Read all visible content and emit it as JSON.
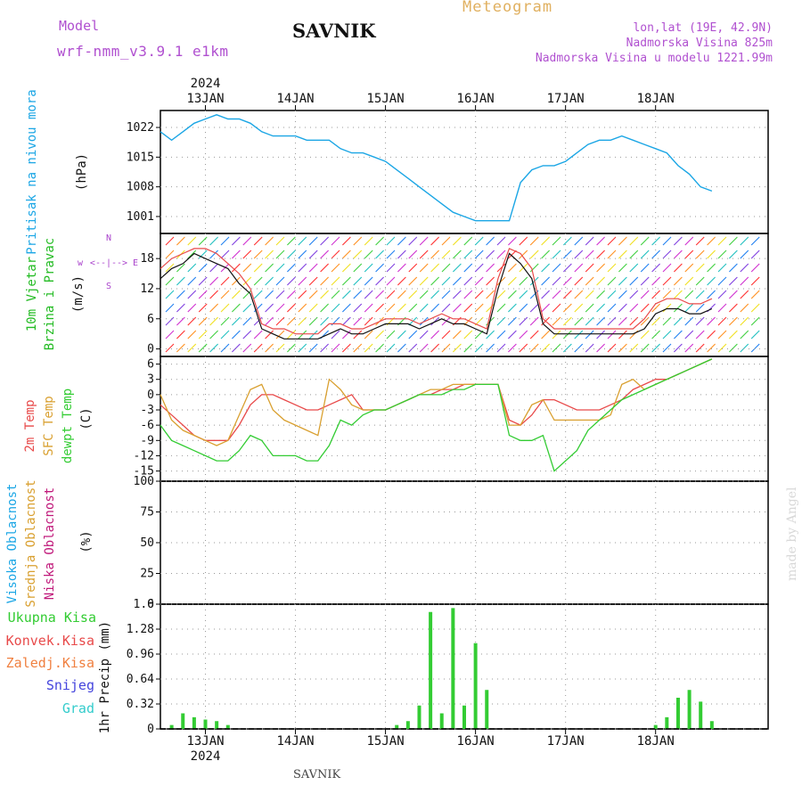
{
  "header": {
    "model_label": "Model",
    "model_name": "wrf-nmm_v3.9.1 e1km",
    "station": "SAVNIK",
    "product": "Meteogram",
    "coords": "lon,lat (19E, 42.9N)",
    "elevation": "Nadmorska Visina 825m",
    "model_elevation": "Nadmorska Visina u modelu 1221.99m",
    "footer_station": "SAVNIK",
    "watermark": "made by Angel"
  },
  "colors": {
    "pressure": "#1ba6e5",
    "wind_label": "#22bb22",
    "wind_dir_label": "#aa44cc",
    "temp_2m": "#e84a4a",
    "temp_sfc": "#d9a030",
    "temp_dew": "#33cc33",
    "cloud_high": "#1ba6e5",
    "cloud_mid": "#d9a030",
    "cloud_low": "#c0187a",
    "precip_total": "#33cc33",
    "precip_conv": "#e84a4a",
    "precip_frz": "#f08040",
    "precip_snow": "#4444dd",
    "precip_grad": "#33cccc",
    "header_purple": "#b050d0",
    "header_gold": "#e0b060"
  },
  "chart_data": [
    {
      "type": "line",
      "ylabel_title": "Pritisak na nivou mora",
      "ylabel_unit": "(hPa)",
      "y_ticks": [
        "1022",
        "1015",
        "1008",
        "1001"
      ],
      "y_tick_values": [
        1022,
        1015,
        1008,
        1001
      ],
      "ylim": [
        997,
        1026
      ],
      "x_day_labels": [
        "13JAN",
        "14JAN",
        "15JAN",
        "16JAN",
        "17JAN",
        "18JAN"
      ],
      "year": "2024",
      "x_hours": [
        0,
        3,
        6,
        9,
        12,
        15,
        18,
        21,
        24,
        27,
        30,
        33,
        36,
        39,
        42,
        45,
        48,
        51,
        54,
        57,
        60,
        63,
        66,
        69,
        72,
        75,
        78,
        81,
        84,
        87,
        90,
        93,
        96,
        99,
        102,
        105,
        108,
        111,
        114,
        117,
        120,
        123,
        126,
        129,
        132,
        135,
        138,
        141,
        144,
        147
      ],
      "series": [
        {
          "values": [
            1021,
            1019,
            1021,
            1023,
            1024,
            1025,
            1024,
            1024,
            1023,
            1021,
            1020,
            1020,
            1020,
            1019,
            1019,
            1019,
            1017,
            1016,
            1016,
            1015,
            1014,
            1012,
            1010,
            1008,
            1006,
            1004,
            1002,
            1001,
            1000,
            1000,
            1000,
            1000,
            1009,
            1012,
            1013,
            1013,
            1014,
            1016,
            1018,
            1019,
            1019,
            1020,
            1019,
            1018,
            1017,
            1016,
            1013,
            1011,
            1008,
            1007
          ]
        }
      ]
    },
    {
      "type": "line",
      "ylabel_title": "10m Vjetar",
      "ylabel_title2": "Brzina i Pravac",
      "ylabel_unit": "(m/s)",
      "direction_legend": [
        "w",
        "<--|-->",
        "E",
        "N",
        "S"
      ],
      "y_ticks": [
        "18",
        "12",
        "6",
        "0"
      ],
      "y_tick_values": [
        18,
        12,
        6,
        0
      ],
      "ylim": [
        -1.5,
        23
      ],
      "x_hours": [
        0,
        3,
        6,
        9,
        12,
        15,
        18,
        21,
        24,
        27,
        30,
        33,
        36,
        39,
        42,
        45,
        48,
        51,
        54,
        57,
        60,
        63,
        66,
        69,
        72,
        75,
        78,
        81,
        84,
        87,
        90,
        93,
        96,
        99,
        102,
        105,
        108,
        111,
        114,
        117,
        120,
        123,
        126,
        129,
        132,
        135,
        138,
        141,
        144,
        147
      ],
      "series": [
        {
          "name": "speed",
          "values": [
            14,
            16,
            17,
            19,
            18,
            17,
            16,
            13,
            11,
            4,
            3,
            2,
            2,
            2,
            2,
            3,
            4,
            3,
            3,
            4,
            5,
            5,
            5,
            4,
            5,
            6,
            5,
            5,
            4,
            3,
            12,
            19,
            17,
            14,
            5,
            3,
            3,
            3,
            3,
            3,
            3,
            3,
            3,
            4,
            7,
            8,
            8,
            7,
            7,
            8
          ]
        },
        {
          "name": "gust",
          "values": [
            16,
            18,
            19,
            20,
            20,
            19,
            17,
            15,
            12,
            5,
            4,
            4,
            3,
            3,
            3,
            5,
            5,
            4,
            4,
            5,
            6,
            6,
            6,
            5,
            6,
            7,
            6,
            6,
            5,
            4,
            14,
            20,
            19,
            16,
            6,
            4,
            4,
            4,
            4,
            4,
            4,
            4,
            4,
            6,
            9,
            10,
            10,
            9,
            9,
            10
          ]
        }
      ]
    },
    {
      "type": "line",
      "ylabel_series": [
        "2m Temp",
        "SFC Temp",
        "dewpt Temp"
      ],
      "ylabel_unit": "(C)",
      "y_ticks": [
        "6",
        "3",
        "0",
        "-3",
        "-6",
        "-9",
        "-12",
        "-15"
      ],
      "y_tick_values": [
        6,
        3,
        0,
        -3,
        -6,
        -9,
        -12,
        -15
      ],
      "ylim": [
        -17,
        7.5
      ],
      "x_hours": [
        0,
        3,
        6,
        9,
        12,
        15,
        18,
        21,
        24,
        27,
        30,
        33,
        36,
        39,
        42,
        45,
        48,
        51,
        54,
        57,
        60,
        63,
        66,
        69,
        72,
        75,
        78,
        81,
        84,
        87,
        90,
        93,
        96,
        99,
        102,
        105,
        108,
        111,
        114,
        117,
        120,
        123,
        126,
        129,
        132,
        135,
        138,
        141,
        144,
        147
      ],
      "series": [
        {
          "name": "2m Temp",
          "values": [
            -2,
            -4,
            -6,
            -8,
            -9,
            -9,
            -9,
            -6,
            -2,
            0,
            0,
            -1,
            -2,
            -3,
            -3,
            -2,
            -1,
            0,
            -3,
            -3,
            -3,
            -2,
            -1,
            0,
            0,
            1,
            1,
            2,
            2,
            2,
            2,
            -5,
            -6,
            -4,
            -1,
            -1,
            -2,
            -3,
            -3,
            -3,
            -2,
            -1,
            1,
            2,
            3,
            3,
            4,
            5,
            6,
            7
          ]
        },
        {
          "name": "SFC Temp",
          "values": [
            0,
            -5,
            -7,
            -8,
            -9,
            -10,
            -9,
            -4,
            1,
            2,
            -3,
            -5,
            -6,
            -7,
            -8,
            3,
            1,
            -2,
            -3,
            -3,
            -3,
            -2,
            -1,
            0,
            1,
            1,
            2,
            2,
            2,
            2,
            2,
            -6,
            -6,
            -2,
            -1,
            -5,
            -5,
            -5,
            -5,
            -5,
            -4,
            2,
            3,
            1,
            2,
            3,
            4,
            5,
            6,
            7
          ]
        },
        {
          "name": "dewpt Temp",
          "values": [
            -6,
            -9,
            -10,
            -11,
            -12,
            -13,
            -13,
            -11,
            -8,
            -9,
            -12,
            -12,
            -12,
            -13,
            -13,
            -10,
            -5,
            -6,
            -4,
            -3,
            -3,
            -2,
            -1,
            0,
            0,
            0,
            1,
            1,
            2,
            2,
            2,
            -8,
            -9,
            -9,
            -8,
            -15,
            -13,
            -11,
            -7,
            -5,
            -3,
            -1,
            0,
            1,
            2,
            3,
            4,
            5,
            6,
            7
          ]
        }
      ]
    },
    {
      "type": "bar",
      "ylabel_series": [
        "Visoka Oblacnost",
        "Srednja Oblacnost",
        "Niska Oblacnost"
      ],
      "ylabel_unit": "(%)",
      "y_ticks": [
        "100",
        "75",
        "50",
        "25",
        "0"
      ],
      "y_tick_values": [
        100,
        75,
        50,
        25,
        0
      ],
      "ylim": [
        0,
        100
      ],
      "x_hours": [
        0,
        3,
        6,
        9,
        12,
        15,
        18,
        21,
        24,
        27,
        30,
        33,
        36,
        39,
        42,
        45,
        48,
        51,
        54,
        57,
        60,
        63,
        66,
        69,
        72,
        75,
        78,
        81,
        84,
        87,
        90,
        93,
        96,
        99,
        102,
        105,
        108,
        111,
        114,
        117,
        120,
        123,
        126,
        129,
        132,
        135,
        138,
        141,
        144,
        147
      ],
      "series": [
        {
          "name": "Visoka Oblacnost",
          "values": [
            0,
            0,
            0,
            0,
            0,
            0,
            0,
            0,
            0,
            0,
            0,
            0,
            0,
            0,
            0,
            0,
            0,
            0,
            0,
            0,
            0,
            0,
            0,
            0,
            0,
            0,
            0,
            0,
            0,
            0,
            0,
            0,
            0,
            0,
            0,
            0,
            0,
            0,
            0,
            0,
            0,
            0,
            0,
            0,
            0,
            0,
            0,
            0,
            0,
            0
          ]
        },
        {
          "name": "Srednja Oblacnost",
          "values": [
            0,
            0,
            0,
            0,
            0,
            0,
            0,
            0,
            0,
            0,
            0,
            0,
            0,
            0,
            0,
            0,
            0,
            0,
            0,
            0,
            0,
            0,
            0,
            0,
            0,
            0,
            0,
            0,
            0,
            0,
            0,
            0,
            0,
            0,
            0,
            0,
            0,
            0,
            0,
            0,
            0,
            0,
            0,
            0,
            0,
            0,
            0,
            0,
            0,
            0
          ]
        },
        {
          "name": "Niska Oblacnost",
          "values": [
            0,
            0,
            0,
            0,
            0,
            0,
            0,
            0,
            0,
            0,
            0,
            0,
            0,
            0,
            0,
            0,
            0,
            0,
            0,
            0,
            0,
            0,
            0,
            0,
            0,
            0,
            0,
            0,
            0,
            0,
            0,
            0,
            0,
            0,
            0,
            0,
            0,
            0,
            0,
            0,
            0,
            0,
            0,
            0,
            0,
            0,
            0,
            0,
            0,
            0
          ]
        }
      ]
    },
    {
      "type": "bar",
      "ylabel_title": "1hr Precip (mm)",
      "legend": [
        "Ukupna Kisa",
        "Konvek.Kisa",
        "Zaledj.Kisa",
        "Snijeg",
        "Grad"
      ],
      "y_ticks": [
        "1.6",
        "1.28",
        "0.96",
        "0.64",
        "0.32",
        "0"
      ],
      "y_tick_values": [
        1.6,
        1.28,
        0.96,
        0.64,
        0.32,
        0
      ],
      "ylim": [
        0,
        1.6
      ],
      "x_hours": [
        0,
        3,
        6,
        9,
        12,
        15,
        18,
        21,
        24,
        27,
        30,
        33,
        36,
        39,
        42,
        45,
        48,
        51,
        54,
        57,
        60,
        63,
        66,
        69,
        72,
        75,
        78,
        81,
        84,
        87,
        90,
        93,
        96,
        99,
        102,
        105,
        108,
        111,
        114,
        117,
        120,
        123,
        126,
        129,
        132,
        135,
        138,
        141,
        144,
        147
      ],
      "series": [
        {
          "name": "Ukupna Kisa",
          "values": [
            0,
            0.05,
            0.2,
            0.15,
            0.12,
            0.1,
            0.05,
            0,
            0,
            0,
            0,
            0,
            0,
            0,
            0,
            0,
            0,
            0,
            0,
            0,
            0,
            0.05,
            0.1,
            0.3,
            1.5,
            0.2,
            1.55,
            0.3,
            1.1,
            0.5,
            0,
            0,
            0,
            0,
            0,
            0,
            0,
            0,
            0,
            0,
            0,
            0,
            0,
            0,
            0.05,
            0.15,
            0.4,
            0.5,
            0.35,
            0.1
          ]
        }
      ]
    }
  ]
}
